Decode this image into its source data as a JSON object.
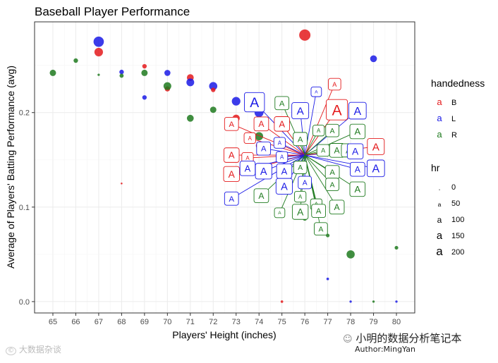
{
  "chart_data": {
    "type": "scatter",
    "title": "Baseball Player Performance",
    "xlabel": "Players' Height (inches)",
    "ylabel": "Average of Players' Batting Performance (avg)",
    "xlim": [
      64.2,
      80.8
    ],
    "ylim": [
      -0.012,
      0.296
    ],
    "x_ticks": [
      65,
      66,
      67,
      68,
      69,
      70,
      71,
      72,
      73,
      74,
      75,
      76,
      77,
      78,
      79,
      80
    ],
    "y_ticks": [
      0.0,
      0.1,
      0.2
    ],
    "y_tick_labels": [
      "0.0",
      "0.1",
      "0.2"
    ],
    "grid": true,
    "legend": {
      "placement": "right",
      "handedness_title": "handedness",
      "handedness_items": [
        {
          "label": "B",
          "color": "#E41A1C"
        },
        {
          "label": "L",
          "color": "#1A1AE6"
        },
        {
          "label": "R",
          "color": "#1E7A1E"
        }
      ],
      "hr_title": "hr",
      "hr_items": [
        {
          "label": "0",
          "value": 0
        },
        {
          "label": "50",
          "value": 50
        },
        {
          "label": "100",
          "value": 100
        },
        {
          "label": "150",
          "value": 150
        },
        {
          "label": "200",
          "value": 200
        }
      ]
    },
    "colors": {
      "B": "#E41A1C",
      "L": "#1A1AE6",
      "R": "#1E7A1E"
    },
    "points": [
      {
        "x": 65,
        "y": 0.242,
        "h": "R",
        "hr": 60
      },
      {
        "x": 66,
        "y": 0.255,
        "h": "R",
        "hr": 30
      },
      {
        "x": 67,
        "y": 0.275,
        "h": "L",
        "hr": 160
      },
      {
        "x": 67,
        "y": 0.264,
        "h": "B",
        "hr": 110
      },
      {
        "x": 67,
        "y": 0.24,
        "h": "R",
        "hr": 8
      },
      {
        "x": 68,
        "y": 0.243,
        "h": "L",
        "hr": 30
      },
      {
        "x": 68,
        "y": 0.239,
        "h": "R",
        "hr": 25
      },
      {
        "x": 68,
        "y": 0.125,
        "h": "B",
        "hr": 5
      },
      {
        "x": 69,
        "y": 0.249,
        "h": "B",
        "hr": 30
      },
      {
        "x": 69,
        "y": 0.242,
        "h": "R",
        "hr": 60
      },
      {
        "x": 69,
        "y": 0.216,
        "h": "L",
        "hr": 30
      },
      {
        "x": 70,
        "y": 0.242,
        "h": "L",
        "hr": 55
      },
      {
        "x": 70,
        "y": 0.225,
        "h": "B",
        "hr": 40
      },
      {
        "x": 70,
        "y": 0.228,
        "h": "R",
        "hr": 90
      },
      {
        "x": 71,
        "y": 0.237,
        "h": "B",
        "hr": 70
      },
      {
        "x": 71,
        "y": 0.232,
        "h": "L",
        "hr": 90
      },
      {
        "x": 71,
        "y": 0.194,
        "h": "R",
        "hr": 70
      },
      {
        "x": 72,
        "y": 0.228,
        "h": "L",
        "hr": 100
      },
      {
        "x": 72,
        "y": 0.224,
        "h": "B",
        "hr": 30
      },
      {
        "x": 72,
        "y": 0.203,
        "h": "R",
        "hr": 60
      },
      {
        "x": 73,
        "y": 0.212,
        "h": "L",
        "hr": 110
      },
      {
        "x": 73,
        "y": 0.194,
        "h": "B",
        "hr": 80
      },
      {
        "x": 73,
        "y": 0.185,
        "h": "R",
        "hr": 40
      },
      {
        "x": 74,
        "y": 0.2,
        "h": "L",
        "hr": 120
      },
      {
        "x": 74,
        "y": 0.175,
        "h": "R",
        "hr": 100
      },
      {
        "x": 74,
        "y": 0.165,
        "h": "B",
        "hr": 60
      },
      {
        "x": 74,
        "y": 0.14,
        "h": "R",
        "hr": 30
      },
      {
        "x": 75,
        "y": 0.141,
        "h": "L",
        "hr": 60
      },
      {
        "x": 75,
        "y": 0.0,
        "h": "B",
        "hr": 10
      },
      {
        "x": 76,
        "y": 0.282,
        "h": "B",
        "hr": 190
      },
      {
        "x": 76,
        "y": 0.155,
        "h": "L",
        "hr": 60
      },
      {
        "x": 76,
        "y": 0.088,
        "h": "R",
        "hr": 30
      },
      {
        "x": 77,
        "y": 0.07,
        "h": "R",
        "hr": 20
      },
      {
        "x": 77,
        "y": 0.024,
        "h": "L",
        "hr": 10
      },
      {
        "x": 78,
        "y": 0.05,
        "h": "R",
        "hr": 100
      },
      {
        "x": 78,
        "y": 0.0,
        "h": "L",
        "hr": 8
      },
      {
        "x": 79,
        "y": 0.257,
        "h": "L",
        "hr": 70
      },
      {
        "x": 79,
        "y": 0.0,
        "h": "R",
        "hr": 8
      },
      {
        "x": 80,
        "y": 0.057,
        "h": "R",
        "hr": 20
      },
      {
        "x": 80,
        "y": 0.0,
        "h": "L",
        "hr": 8
      }
    ],
    "cluster_center": {
      "x": 76,
      "y": 0.155
    },
    "repel_labels": [
      {
        "x": 73.8,
        "y": 0.211,
        "h": "L",
        "hr": 180
      },
      {
        "x": 75.0,
        "y": 0.21,
        "h": "R",
        "hr": 60
      },
      {
        "x": 75.8,
        "y": 0.202,
        "h": "L",
        "hr": 110
      },
      {
        "x": 76.5,
        "y": 0.222,
        "h": "L",
        "hr": 20
      },
      {
        "x": 77.3,
        "y": 0.23,
        "h": "B",
        "hr": 40
      },
      {
        "x": 77.4,
        "y": 0.203,
        "h": "B",
        "hr": 210
      },
      {
        "x": 78.3,
        "y": 0.202,
        "h": "L",
        "hr": 120
      },
      {
        "x": 72.8,
        "y": 0.188,
        "h": "B",
        "hr": 60
      },
      {
        "x": 74.1,
        "y": 0.188,
        "h": "B",
        "hr": 70
      },
      {
        "x": 75.0,
        "y": 0.188,
        "h": "B",
        "hr": 80
      },
      {
        "x": 76.6,
        "y": 0.181,
        "h": "R",
        "hr": 30
      },
      {
        "x": 77.2,
        "y": 0.181,
        "h": "R",
        "hr": 50
      },
      {
        "x": 78.3,
        "y": 0.18,
        "h": "R",
        "hr": 80
      },
      {
        "x": 73.6,
        "y": 0.173,
        "h": "B",
        "hr": 30
      },
      {
        "x": 75.8,
        "y": 0.172,
        "h": "R",
        "hr": 60
      },
      {
        "x": 74.2,
        "y": 0.162,
        "h": "L",
        "hr": 60
      },
      {
        "x": 74.9,
        "y": 0.168,
        "h": "L",
        "hr": 30
      },
      {
        "x": 76.8,
        "y": 0.16,
        "h": "R",
        "hr": 40
      },
      {
        "x": 77.4,
        "y": 0.16,
        "h": "R",
        "hr": 70
      },
      {
        "x": 77.9,
        "y": 0.16,
        "h": "R",
        "hr": 60
      },
      {
        "x": 78.2,
        "y": 0.159,
        "h": "L",
        "hr": 90
      },
      {
        "x": 79.1,
        "y": 0.164,
        "h": "B",
        "hr": 110
      },
      {
        "x": 72.8,
        "y": 0.155,
        "h": "B",
        "hr": 80
      },
      {
        "x": 73.5,
        "y": 0.152,
        "h": "B",
        "hr": 30
      },
      {
        "x": 75.0,
        "y": 0.153,
        "h": "L",
        "hr": 30
      },
      {
        "x": 75.8,
        "y": 0.142,
        "h": "R",
        "hr": 50
      },
      {
        "x": 74.2,
        "y": 0.138,
        "h": "L",
        "hr": 100
      },
      {
        "x": 75.1,
        "y": 0.138,
        "h": "L",
        "hr": 80
      },
      {
        "x": 77.2,
        "y": 0.137,
        "h": "R",
        "hr": 60
      },
      {
        "x": 78.3,
        "y": 0.14,
        "h": "L",
        "hr": 70
      },
      {
        "x": 79.1,
        "y": 0.141,
        "h": "L",
        "hr": 120
      },
      {
        "x": 72.8,
        "y": 0.135,
        "h": "B",
        "hr": 90
      },
      {
        "x": 73.5,
        "y": 0.141,
        "h": "L",
        "hr": 80
      },
      {
        "x": 75.1,
        "y": 0.122,
        "h": "L",
        "hr": 100
      },
      {
        "x": 76.0,
        "y": 0.126,
        "h": "L",
        "hr": 50
      },
      {
        "x": 77.2,
        "y": 0.124,
        "h": "R",
        "hr": 50
      },
      {
        "x": 78.3,
        "y": 0.119,
        "h": "R",
        "hr": 80
      },
      {
        "x": 74.1,
        "y": 0.112,
        "h": "R",
        "hr": 70
      },
      {
        "x": 72.8,
        "y": 0.109,
        "h": "L",
        "hr": 60
      },
      {
        "x": 75.8,
        "y": 0.111,
        "h": "R",
        "hr": 30
      },
      {
        "x": 76.5,
        "y": 0.103,
        "h": "R",
        "hr": 30
      },
      {
        "x": 77.4,
        "y": 0.1,
        "h": "R",
        "hr": 70
      },
      {
        "x": 75.8,
        "y": 0.095,
        "h": "R",
        "hr": 90
      },
      {
        "x": 76.6,
        "y": 0.096,
        "h": "R",
        "hr": 60
      },
      {
        "x": 74.9,
        "y": 0.094,
        "h": "R",
        "hr": 20
      },
      {
        "x": 76.7,
        "y": 0.077,
        "h": "R",
        "hr": 50
      }
    ]
  },
  "watermark": {
    "left_text": "大数据杂谈",
    "right_text": "小明的数据分析笔记本",
    "author": "Author:MingYan"
  }
}
